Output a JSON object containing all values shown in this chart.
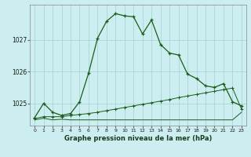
{
  "title": "Graphe pression niveau de la mer (hPa)",
  "background_color": "#cceef0",
  "grid_color": "#aad4d8",
  "line_color": "#1a5c1a",
  "xlim": [
    -0.5,
    23.5
  ],
  "ylim": [
    1024.3,
    1028.1
  ],
  "yticks": [
    1025,
    1026,
    1027
  ],
  "xticks": [
    0,
    1,
    2,
    3,
    4,
    5,
    6,
    7,
    8,
    9,
    10,
    11,
    12,
    13,
    14,
    15,
    16,
    17,
    18,
    19,
    20,
    21,
    22,
    23
  ],
  "series1_x": [
    0,
    1,
    2,
    3,
    4,
    5,
    6,
    7,
    8,
    9,
    10,
    11,
    12,
    13,
    14,
    15,
    16,
    17,
    18,
    19,
    20,
    21,
    22,
    23
  ],
  "series1_y": [
    1024.55,
    1025.0,
    1024.72,
    1024.62,
    1024.68,
    1025.05,
    1025.95,
    1027.05,
    1027.58,
    1027.82,
    1027.75,
    1027.72,
    1027.18,
    1027.62,
    1026.85,
    1026.58,
    1026.52,
    1025.92,
    1025.78,
    1025.55,
    1025.5,
    1025.62,
    1025.05,
    1024.92
  ],
  "series2_x": [
    0,
    1,
    2,
    3,
    4,
    5,
    6,
    7,
    8,
    9,
    10,
    11,
    12,
    13,
    14,
    15,
    16,
    17,
    18,
    19,
    20,
    21,
    22,
    23
  ],
  "series2_y": [
    1024.52,
    1024.58,
    1024.58,
    1024.58,
    1024.62,
    1024.65,
    1024.68,
    1024.72,
    1024.77,
    1024.82,
    1024.87,
    1024.92,
    1024.97,
    1025.02,
    1025.07,
    1025.12,
    1025.18,
    1025.23,
    1025.28,
    1025.33,
    1025.38,
    1025.43,
    1025.48,
    1024.82
  ],
  "series3_x": [
    0,
    1,
    2,
    3,
    4,
    5,
    6,
    7,
    8,
    9,
    10,
    11,
    12,
    13,
    14,
    15,
    16,
    17,
    18,
    19,
    20,
    21,
    22,
    23
  ],
  "series3_y": [
    1024.48,
    1024.53,
    1024.48,
    1024.5,
    1024.48,
    1024.48,
    1024.48,
    1024.48,
    1024.48,
    1024.48,
    1024.48,
    1024.48,
    1024.48,
    1024.48,
    1024.48,
    1024.48,
    1024.48,
    1024.48,
    1024.48,
    1024.48,
    1024.48,
    1024.48,
    1024.48,
    1024.72
  ]
}
